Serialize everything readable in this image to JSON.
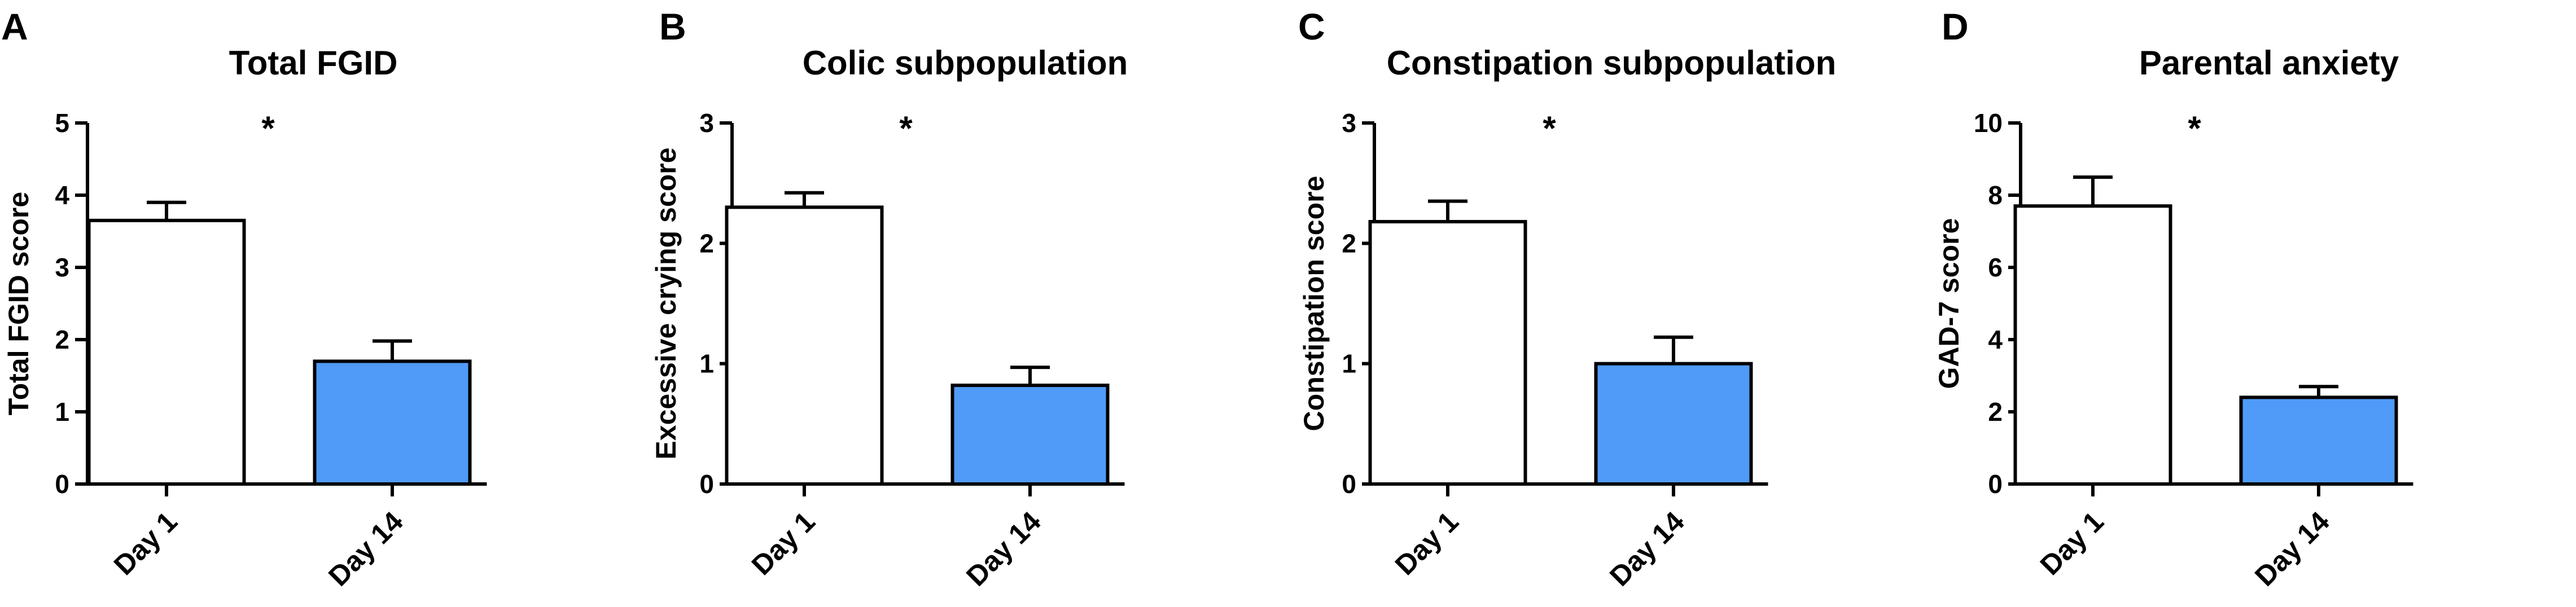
{
  "chart_data": [
    {
      "type": "bar",
      "panel": "A",
      "title": "Total FGID",
      "xlabel": "",
      "ylabel": "Total FGID score",
      "categories": [
        "Day 1",
        "Day 14"
      ],
      "values": [
        3.65,
        1.7
      ],
      "errors": [
        0.25,
        0.28
      ],
      "colors": [
        "#ffffff",
        "#4f9bf7"
      ],
      "ylim": [
        0,
        5
      ],
      "yticks": [
        0,
        1,
        2,
        3,
        4,
        5
      ],
      "significance": "*",
      "grid": false
    },
    {
      "type": "bar",
      "panel": "B",
      "title": "Colic subpopulation",
      "xlabel": "",
      "ylabel": "Excessive crying score",
      "categories": [
        "Day 1",
        "Day 14"
      ],
      "values": [
        2.3,
        0.82
      ],
      "errors": [
        0.12,
        0.15
      ],
      "colors": [
        "#ffffff",
        "#4f9bf7"
      ],
      "ylim": [
        0,
        3
      ],
      "yticks": [
        0,
        1,
        2,
        3
      ],
      "significance": "*",
      "grid": false
    },
    {
      "type": "bar",
      "panel": "C",
      "title": "Constipation subpopulation",
      "xlabel": "",
      "ylabel": "Constipation score",
      "categories": [
        "Day 1",
        "Day 14"
      ],
      "values": [
        2.18,
        1.0
      ],
      "errors": [
        0.17,
        0.22
      ],
      "colors": [
        "#ffffff",
        "#4f9bf7"
      ],
      "ylim": [
        0,
        3
      ],
      "yticks": [
        0,
        1,
        2,
        3
      ],
      "significance": "*",
      "grid": false
    },
    {
      "type": "bar",
      "panel": "D",
      "title": "Parental anxiety",
      "xlabel": "",
      "ylabel": "GAD-7 score",
      "categories": [
        "Day 1",
        "Day 14"
      ],
      "values": [
        7.7,
        2.4
      ],
      "errors": [
        0.8,
        0.3
      ],
      "colors": [
        "#ffffff",
        "#4f9bf7"
      ],
      "ylim": [
        0,
        10
      ],
      "yticks": [
        0,
        2,
        4,
        6,
        8,
        10
      ],
      "significance": "*",
      "grid": false
    }
  ]
}
